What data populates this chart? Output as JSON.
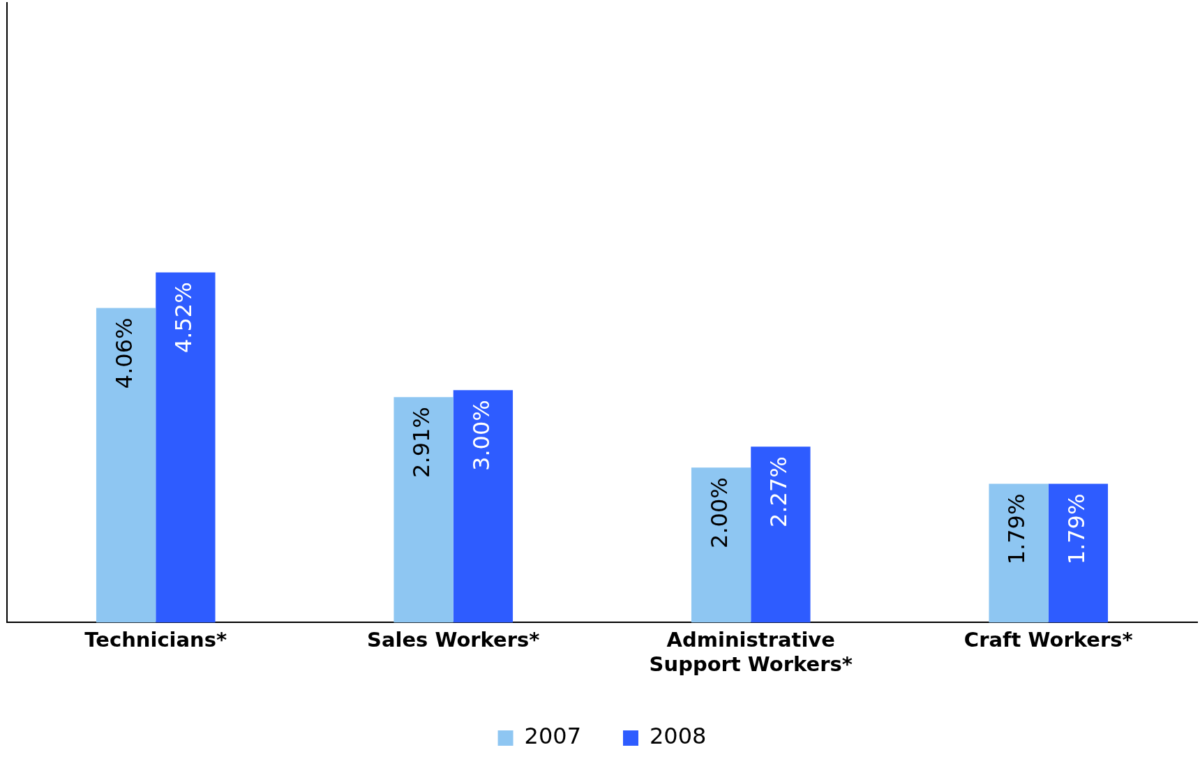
{
  "chart_data": {
    "type": "bar",
    "categories": [
      "Technicians*",
      "Sales Workers*",
      "Administrative Support Workers*",
      "Craft Workers*"
    ],
    "series": [
      {
        "name": "2007",
        "color": "#8ec6f2",
        "values": [
          4.06,
          2.91,
          2.0,
          1.79
        ],
        "value_labels": [
          "4.06%",
          "2.91%",
          "2.00%",
          "1.79%"
        ]
      },
      {
        "name": "2008",
        "color": "#2e5cff",
        "values": [
          4.52,
          3.0,
          2.27,
          1.79
        ],
        "value_labels": [
          "4.52%",
          "3.00%",
          "2.27%",
          "1.79%"
        ]
      }
    ],
    "grid": false,
    "legend": "bottom"
  }
}
